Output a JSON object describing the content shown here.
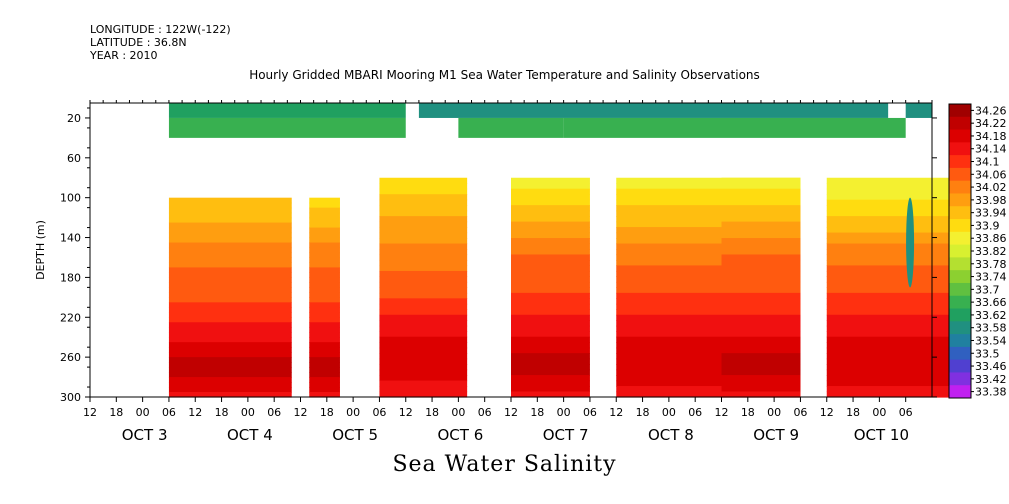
{
  "header": {
    "longitude": "LONGITUDE : 122W(-122)",
    "latitude": "LATITUDE : 36.8N",
    "year": "YEAR : 2010",
    "title": "Hourly Gridded MBARI Mooring M1 Sea Water Temperature and Salinity Observations",
    "bottom_title": "Sea Water Salinity"
  },
  "chart_data": {
    "type": "heatmap",
    "variable": "Sea Water Salinity",
    "ylabel": "DEPTH (m)",
    "y_reversed": true,
    "ylim": [
      300,
      0
    ],
    "y_ticks": [
      20,
      60,
      100,
      140,
      180,
      220,
      260,
      300
    ],
    "x_range_hours": [
      "OCT 2 12:00",
      "OCT 10 12:00"
    ],
    "x_hour_labels": [
      "12",
      "18",
      "00",
      "06",
      "12",
      "18",
      "00",
      "06",
      "12",
      "18",
      "00",
      "06",
      "12",
      "18",
      "00",
      "06",
      "12",
      "18",
      "00",
      "06",
      "12",
      "18",
      "00",
      "06",
      "12",
      "18",
      "00",
      "06",
      "12",
      "18",
      "00",
      "06"
    ],
    "x_day_labels": [
      "OCT  3",
      "OCT  4",
      "OCT  5",
      "OCT  6",
      "OCT  7",
      "OCT  8",
      "OCT  9",
      "OCT 10"
    ],
    "colorbar_levels": [
      "34.26",
      "34.22",
      "34.18",
      "34.14",
      "34.1",
      "34.06",
      "34.02",
      "33.98",
      "33.94",
      "33.9",
      "33.86",
      "33.82",
      "33.78",
      "33.74",
      "33.7",
      "33.66",
      "33.62",
      "33.58",
      "33.54",
      "33.5",
      "33.46",
      "33.42",
      "33.38"
    ],
    "colorbar_colors": [
      "#a00000",
      "#c00000",
      "#dc0000",
      "#f01010",
      "#ff3010",
      "#ff5a10",
      "#ff8010",
      "#ff9e10",
      "#ffbe10",
      "#ffdc10",
      "#f4f030",
      "#d8f030",
      "#b4e030",
      "#8cd030",
      "#60c040",
      "#38b050",
      "#20a060",
      "#209080",
      "#2080a0",
      "#3060c0",
      "#5040d0",
      "#8030e0",
      "#c020f0"
    ],
    "depth_levels_m": [
      10,
      40,
      80,
      100,
      140,
      180,
      220,
      250,
      300
    ],
    "surface_segments": [
      {
        "start_hour": 18,
        "end_hour": 72,
        "depth_top": 5,
        "depth_bottom": 20,
        "salinity": 33.62
      },
      {
        "start_hour": 75,
        "end_hour": 182,
        "depth_top": 5,
        "depth_bottom": 20,
        "salinity": 33.56
      },
      {
        "start_hour": 186,
        "end_hour": 192,
        "depth_top": 5,
        "depth_bottom": 20,
        "salinity": 33.58
      }
    ],
    "upper_segments": [
      {
        "start_hour": 18,
        "end_hour": 72,
        "depth_top": 20,
        "depth_bottom": 40,
        "salinity": 33.66
      },
      {
        "start_hour": 84,
        "end_hour": 108,
        "depth_top": 20,
        "depth_bottom": 40,
        "salinity": 33.64
      },
      {
        "start_hour": 108,
        "end_hour": 186,
        "depth_top": 20,
        "depth_bottom": 40,
        "salinity": 33.66
      }
    ],
    "deep_segments": [
      {
        "start_hour": 18,
        "end_hour": 46,
        "depth_top": 100,
        "depth_bottom": 300,
        "profile": [
          33.92,
          33.98,
          34.04,
          34.08,
          34.14,
          34.22,
          34.14
        ]
      },
      {
        "start_hour": 50,
        "end_hour": 57,
        "depth_top": 100,
        "depth_bottom": 300,
        "profile": [
          33.9,
          33.98,
          34.04,
          34.08,
          34.14,
          34.22,
          34.14
        ]
      },
      {
        "start_hour": 66,
        "end_hour": 86,
        "depth_top": 80,
        "depth_bottom": 300,
        "profile": [
          33.9,
          33.96,
          34.02,
          34.06,
          34.14,
          34.2,
          34.12
        ]
      },
      {
        "start_hour": 96,
        "end_hour": 114,
        "depth_top": 80,
        "depth_bottom": 300,
        "profile": [
          33.86,
          33.94,
          34.04,
          34.08,
          34.14,
          34.22,
          34.14
        ]
      },
      {
        "start_hour": 120,
        "end_hour": 162,
        "depth_top": 80,
        "depth_bottom": 300,
        "profile": [
          33.86,
          33.94,
          34.02,
          34.08,
          34.14,
          34.2,
          34.14
        ]
      },
      {
        "start_hour": 144,
        "end_hour": 162,
        "depth_top": 80,
        "depth_bottom": 300,
        "profile": [
          33.86,
          33.94,
          34.04,
          34.08,
          34.14,
          34.22,
          34.14
        ]
      },
      {
        "start_hour": 168,
        "end_hour": 196,
        "depth_top": 80,
        "depth_bottom": 300,
        "profile": [
          33.84,
          33.92,
          34.02,
          34.08,
          34.14,
          34.2,
          34.14
        ]
      }
    ],
    "anomaly": {
      "hour": 187,
      "depth_top": 100,
      "depth_bottom": 190,
      "salinity": 33.58
    }
  }
}
